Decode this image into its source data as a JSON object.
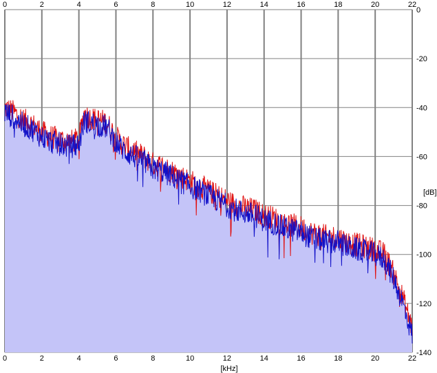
{
  "chart_data": {
    "type": "line",
    "title": "",
    "xlabel": "[kHz]",
    "ylabel": "[dB]",
    "xlim": [
      0,
      22
    ],
    "ylim": [
      -140,
      0
    ],
    "x_ticks": [
      0,
      2,
      4,
      6,
      8,
      10,
      12,
      14,
      16,
      18,
      20,
      22
    ],
    "y_ticks": [
      0,
      -20,
      -40,
      -60,
      -80,
      -100,
      -120,
      -140
    ],
    "grid": true,
    "colors": {
      "background": "#ffffff",
      "grid": "#808080",
      "fill": "#c4c4f8",
      "series_red": "#e01010",
      "series_blue": "#1010c8"
    },
    "x": [
      0,
      0.5,
      1,
      1.5,
      2,
      2.5,
      3,
      3.5,
      4,
      4.3,
      4.5,
      5,
      5.5,
      6,
      6.5,
      7,
      7.5,
      8,
      8.5,
      9,
      9.5,
      10,
      10.5,
      11,
      11.5,
      12,
      12.5,
      13,
      13.5,
      14,
      14.5,
      15,
      15.5,
      16,
      16.5,
      17,
      17.5,
      18,
      18.5,
      19,
      19.5,
      20,
      20.5,
      21,
      21.5,
      22
    ],
    "series": [
      {
        "values": [
          -40,
          -42,
          -45,
          -47,
          -50,
          -52,
          -53,
          -54,
          -53,
          -42,
          -44,
          -45,
          -46,
          -52,
          -56,
          -58,
          -60,
          -63,
          -64,
          -66,
          -68,
          -70,
          -72,
          -74,
          -76,
          -78,
          -80,
          -81,
          -82,
          -84,
          -85,
          -87,
          -88,
          -89,
          -91,
          -92,
          -93,
          -93,
          -95,
          -96,
          -97,
          -98,
          -100,
          -108,
          -118,
          -130
        ]
      },
      {
        "values": [
          -42,
          -44,
          -47,
          -49,
          -52,
          -54,
          -55,
          -56,
          -55,
          -45,
          -46,
          -47,
          -48,
          -54,
          -58,
          -60,
          -62,
          -65,
          -66,
          -68,
          -70,
          -72,
          -74,
          -76,
          -78,
          -80,
          -82,
          -83,
          -84,
          -86,
          -87,
          -89,
          -90,
          -91,
          -93,
          -94,
          -95,
          -95,
          -97,
          -98,
          -99,
          -100,
          -102,
          -110,
          -120,
          -133
        ]
      }
    ]
  }
}
